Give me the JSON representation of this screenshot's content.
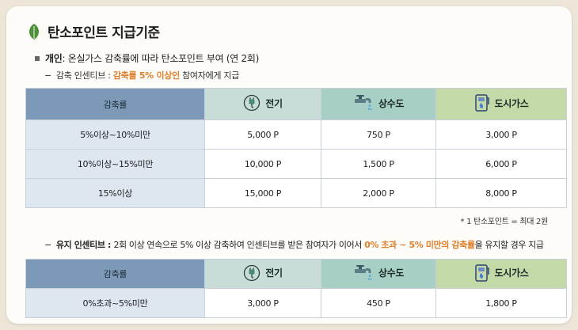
{
  "title": "탄소포인트 지급기준",
  "personal": {
    "label": "개인",
    "text": " : 온실가스 감축률에 따라 탄소포인트 부여 (연 2회)"
  },
  "reduction_incentive": {
    "label": "감축 인센티브 : ",
    "highlight": "감축률 5% 이상인",
    "text": " 참여자에게 지급"
  },
  "table1": {
    "headers": [
      "감축률",
      "전기",
      "상수도",
      "도시가스"
    ],
    "rows": [
      [
        "5%이상~10%미만",
        "5,000 P",
        "750 P",
        "3,000 P"
      ],
      [
        "10%이상~15%미만",
        "10,000 P",
        "1,500 P",
        "6,000 P"
      ],
      [
        "15%이상",
        "15,000 P",
        "2,000 P",
        "8,000 P"
      ]
    ]
  },
  "note": "* 1 탄소포인트 = 최대 2원",
  "maintenance_incentive": {
    "label": "유지 인센티브 : ",
    "text1": "2회 이상 연속으로 5% 이상 감축하여 인센티브를 받은 참여자가 이어서 ",
    "highlight": "0% 초과 ~ 5% 미만의 감축률",
    "text2": "을 유지할 경우 지급"
  },
  "table2": {
    "headers": [
      "감축률",
      "전기",
      "상수도",
      "도시가스"
    ],
    "rows": [
      [
        "0%초과~5%미만",
        "3,000 P",
        "450 P",
        "1,800 P"
      ]
    ]
  },
  "icons": {
    "title": "leaf-icon",
    "electricity": "plug-icon",
    "water": "faucet-icon",
    "gas": "gas-meter-icon"
  },
  "colors": {
    "accent_orange": "#e07f2a",
    "leaf_green": "#4f8f3a",
    "header_category": "#7c9ab8",
    "header_electricity": "#c8ddd8",
    "header_water": "#a7cfc6",
    "header_gas": "#c3d9a8",
    "category_cell": "#dee6f0"
  }
}
